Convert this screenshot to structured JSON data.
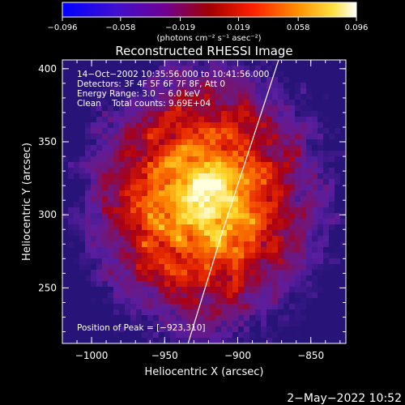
{
  "chart_data": {
    "type": "heatmap",
    "title": "Reconstructed RHESSI Image",
    "xlabel": "Heliocentric X (arcsec)",
    "ylabel": "Heliocentric Y (arcsec)",
    "xlim": [
      -1020,
      -826
    ],
    "ylim": [
      212,
      406
    ],
    "x_ticks": [
      -1000,
      -950,
      -900,
      -850
    ],
    "x_tick_labels": [
      "−1000",
      "−950",
      "−900",
      "−850"
    ],
    "y_ticks": [
      250,
      300,
      350,
      400
    ],
    "y_tick_labels": [
      "250",
      "300",
      "350",
      "400"
    ],
    "colorbar": {
      "colormap": "hot",
      "range": [
        -0.096,
        0.096
      ],
      "ticks": [
        -0.096,
        -0.058,
        -0.019,
        0.019,
        0.058,
        0.096
      ],
      "tick_labels": [
        "−0.096",
        "−0.058",
        "−0.019",
        "0.019",
        "0.058",
        "0.096"
      ],
      "units": "(photons cm⁻² s⁻¹ asec⁻²)"
    },
    "annotations": [
      "14−Oct−2002 10:35:56.000 to 10:41:56.000",
      "Detectors: 3F 4F 5F 6F 7F 8F, Att 0",
      "Energy Range: 3.0 − 6.0 keV",
      "Clean    Total counts: 9.69E+04"
    ],
    "peak_label": "Position of Peak = [−923,310]",
    "peak": [
      -923,
      310
    ],
    "limb_line": [
      [
        -934,
        212
      ],
      [
        -910,
        290
      ],
      [
        -872,
        406
      ]
    ]
  },
  "footer": {
    "date": "2−May−2022 10:52"
  }
}
